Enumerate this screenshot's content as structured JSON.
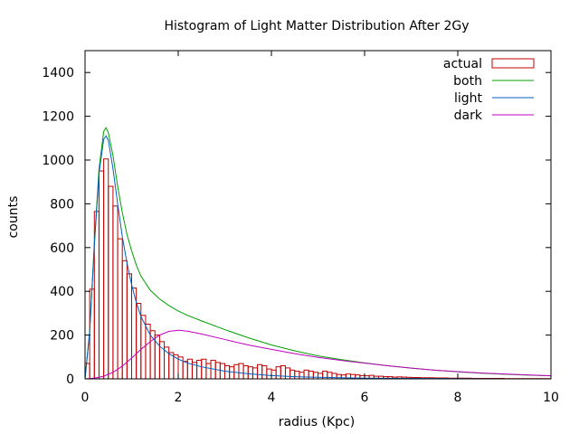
{
  "chart_data": {
    "type": "bar",
    "title": "Histogram of Light Matter Distribution After 2Gy",
    "xlabel": "radius (Kpc)",
    "ylabel": "counts",
    "xlim": [
      0,
      10
    ],
    "ylim": [
      0,
      1500
    ],
    "xticks": [
      0,
      2,
      4,
      6,
      8,
      10
    ],
    "yticks": [
      0,
      200,
      400,
      600,
      800,
      1000,
      1200,
      1400
    ],
    "grid": false,
    "legend_position": "top-right",
    "histogram": {
      "name": "actual",
      "color": "#c00000",
      "bin_width": 0.1,
      "bin_centers": [
        0.05,
        0.15,
        0.25,
        0.35,
        0.45,
        0.55,
        0.65,
        0.75,
        0.85,
        0.95,
        1.05,
        1.15,
        1.25,
        1.35,
        1.45,
        1.55,
        1.65,
        1.75,
        1.85,
        1.95,
        2.05,
        2.15,
        2.25,
        2.35,
        2.45,
        2.55,
        2.65,
        2.75,
        2.85,
        2.95,
        3.05,
        3.15,
        3.25,
        3.35,
        3.45,
        3.55,
        3.65,
        3.75,
        3.85,
        3.95,
        4.05,
        4.15,
        4.25,
        4.35,
        4.45,
        4.55,
        4.65,
        4.75,
        4.85,
        4.95,
        5.05,
        5.15,
        5.25,
        5.35,
        5.45,
        5.55,
        5.65,
        5.75,
        5.85,
        5.95,
        6.05,
        6.15,
        6.25,
        6.35,
        6.45,
        6.55,
        6.65,
        6.75,
        6.85,
        6.95,
        7.05,
        7.15,
        7.25,
        7.35,
        7.45,
        7.55,
        7.65,
        7.75,
        7.85,
        7.95,
        8.05,
        8.15,
        8.25,
        8.35,
        8.45,
        8.55,
        8.65,
        8.75,
        8.85,
        8.95,
        9.05,
        9.15,
        9.25,
        9.35,
        9.45,
        9.55,
        9.65,
        9.75,
        9.85,
        9.95
      ],
      "values": [
        70,
        410,
        765,
        950,
        1005,
        880,
        790,
        640,
        540,
        480,
        415,
        345,
        290,
        250,
        220,
        200,
        170,
        145,
        120,
        110,
        100,
        80,
        90,
        75,
        85,
        90,
        70,
        85,
        75,
        70,
        60,
        55,
        65,
        70,
        60,
        55,
        50,
        65,
        60,
        45,
        40,
        55,
        60,
        50,
        40,
        35,
        30,
        40,
        35,
        30,
        25,
        35,
        30,
        25,
        20,
        18,
        22,
        20,
        18,
        15,
        14,
        16,
        12,
        12,
        10,
        10,
        8,
        9,
        8,
        7,
        6,
        6,
        5,
        5,
        5,
        4,
        4,
        4,
        3,
        3,
        3,
        3,
        3,
        2,
        2,
        2,
        2,
        2,
        2,
        2,
        1,
        1,
        1,
        1,
        1,
        1,
        1,
        1,
        1,
        1
      ]
    },
    "series": [
      {
        "name": "both",
        "color": "#00a000",
        "x": [
          0.0,
          0.1,
          0.2,
          0.3,
          0.4,
          0.45,
          0.5,
          0.6,
          0.7,
          0.8,
          0.9,
          1.0,
          1.1,
          1.2,
          1.4,
          1.6,
          1.8,
          2.0,
          2.2,
          2.5,
          3.0,
          3.5,
          4.0,
          4.5,
          5.0,
          5.5,
          6.0,
          6.5,
          7.0,
          7.5,
          8.0,
          8.5,
          9.0,
          9.5,
          10.0
        ],
        "y": [
          0,
          220,
          620,
          960,
          1130,
          1148,
          1125,
          1020,
          880,
          760,
          660,
          585,
          520,
          470,
          405,
          365,
          335,
          310,
          290,
          265,
          225,
          188,
          155,
          128,
          105,
          88,
          73,
          60,
          49,
          40,
          32,
          26,
          21,
          17,
          14
        ]
      },
      {
        "name": "light",
        "color": "#0060c0",
        "x": [
          0.0,
          0.1,
          0.2,
          0.3,
          0.4,
          0.45,
          0.5,
          0.6,
          0.7,
          0.8,
          0.9,
          1.0,
          1.1,
          1.2,
          1.4,
          1.6,
          1.8,
          2.0,
          2.2,
          2.5,
          3.0,
          3.5,
          4.0,
          4.5,
          5.0,
          5.5,
          6.0,
          7.0,
          8.0,
          9.0,
          10.0
        ],
        "y": [
          0,
          215,
          610,
          940,
          1095,
          1110,
          1090,
          960,
          800,
          650,
          530,
          430,
          350,
          285,
          200,
          150,
          115,
          90,
          72,
          55,
          35,
          23,
          15,
          10,
          7,
          5,
          3,
          2,
          1,
          0,
          0
        ]
      },
      {
        "name": "dark",
        "color": "#c000c0",
        "x": [
          0.0,
          0.2,
          0.4,
          0.6,
          0.8,
          1.0,
          1.2,
          1.4,
          1.6,
          1.8,
          2.0,
          2.2,
          2.5,
          3.0,
          3.5,
          4.0,
          4.5,
          5.0,
          5.5,
          6.0,
          6.5,
          7.0,
          7.5,
          8.0,
          8.5,
          9.0,
          9.5,
          10.0
        ],
        "y": [
          0,
          3,
          12,
          30,
          58,
          95,
          135,
          170,
          200,
          217,
          222,
          218,
          205,
          180,
          155,
          135,
          115,
          98,
          84,
          72,
          60,
          49,
          40,
          33,
          27,
          22,
          18,
          14
        ]
      }
    ]
  }
}
